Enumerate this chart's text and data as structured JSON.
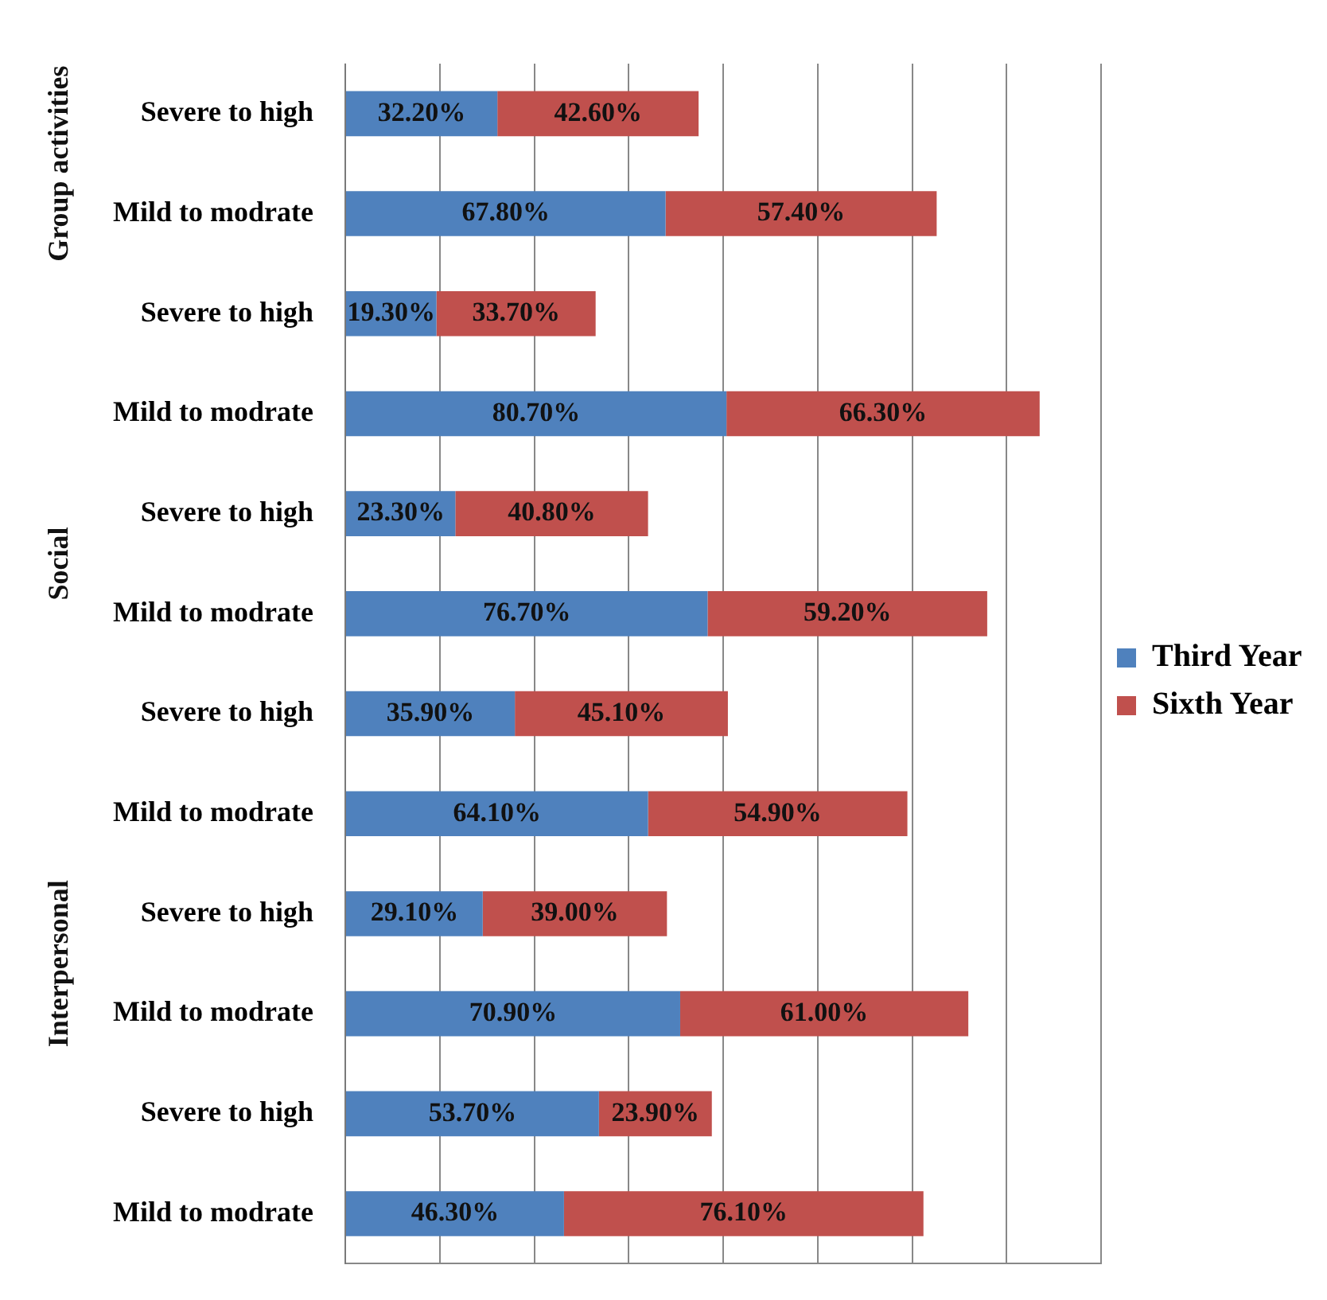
{
  "chart_data": {
    "type": "bar",
    "orientation": "horizontal",
    "stacked": true,
    "categories": [
      "Severe to high",
      "Mild to modrate",
      "Severe to high",
      "Mild to modrate",
      "Severe to high",
      "Mild to modrate",
      "Severe to high",
      "Mild to modrate",
      "Severe to high",
      "Mild to modrate",
      "Severe to high",
      "Mild to modrate"
    ],
    "series": [
      {
        "name": "Third Year",
        "color": "#4f81bd",
        "values": [
          32.2,
          67.8,
          19.3,
          80.7,
          23.3,
          76.7,
          35.9,
          64.1,
          29.1,
          70.9,
          53.7,
          46.3
        ],
        "value_labels": [
          "32.20%",
          "67.80%",
          "19.30%",
          "80.70%",
          "23.30%",
          "76.70%",
          "35.90%",
          "64.10%",
          "29.10%",
          "70.90%",
          "53.70%",
          "46.30%"
        ]
      },
      {
        "name": "Sixth Year",
        "color": "#c0504d",
        "values": [
          42.6,
          57.4,
          33.7,
          66.3,
          40.8,
          59.2,
          45.1,
          54.9,
          39.0,
          61.0,
          23.9,
          76.1
        ],
        "value_labels": [
          "42.60%",
          "57.40%",
          "33.70%",
          "66.30%",
          "40.80%",
          "59.20%",
          "45.10%",
          "54.90%",
          "39.00%",
          "61.00%",
          "23.90%",
          "76.10%"
        ]
      }
    ],
    "xlim": [
      0,
      160
    ],
    "xticks": [
      {
        "value": 0,
        "label": null
      },
      {
        "value": 20,
        "label": null
      },
      {
        "value": 40,
        "label": null
      },
      {
        "value": 60,
        "label": null
      },
      {
        "value": 80,
        "label": null
      },
      {
        "value": 100,
        "label": null
      },
      {
        "value": 120,
        "label": null
      },
      {
        "value": 140,
        "label": null
      },
      {
        "value": 160,
        "label": null
      }
    ],
    "tick_labels": "y",
    "grid": "x",
    "legend": "right",
    "annotations": [
      "Group activities",
      "Social",
      "Interpersonal"
    ]
  }
}
